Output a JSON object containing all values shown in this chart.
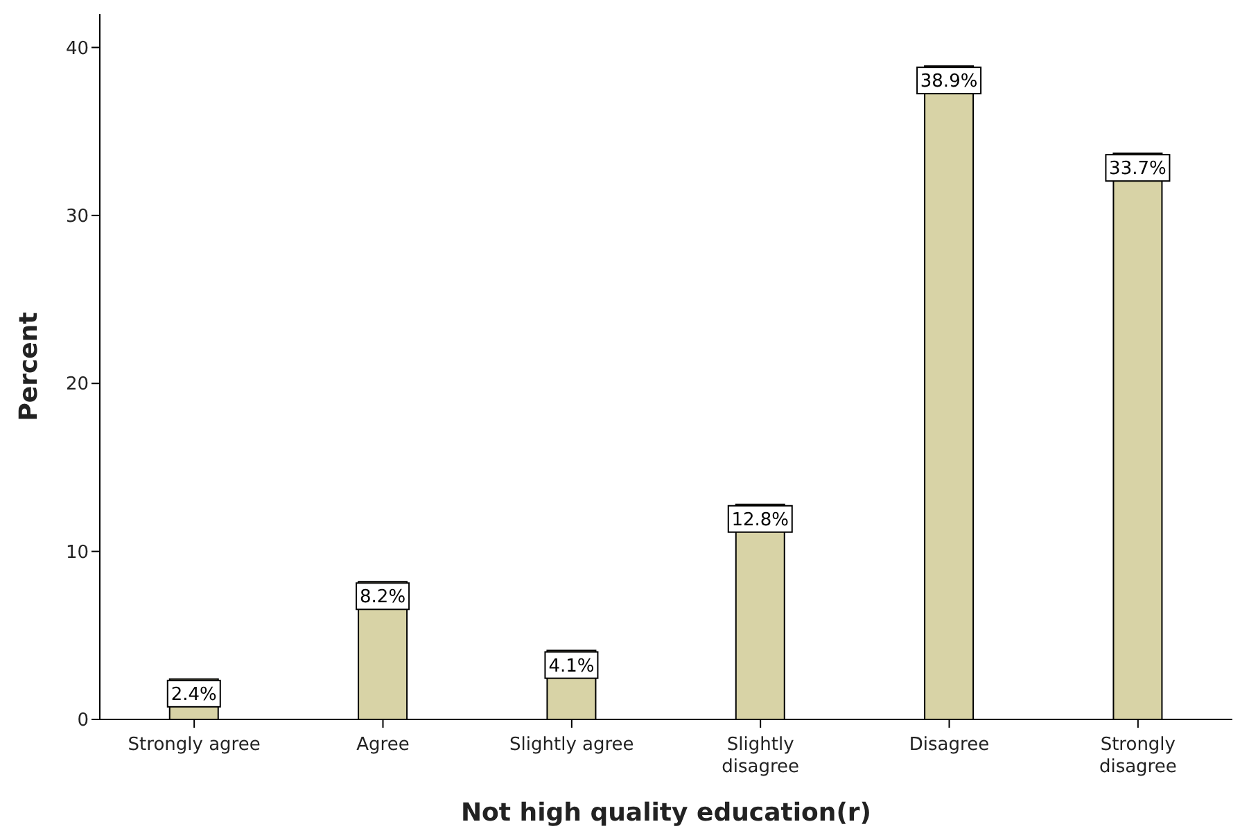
{
  "chart_data": {
    "type": "bar",
    "xlabel": "Not high quality education(r)",
    "ylabel": "Percent",
    "categories": [
      "Strongly agree",
      "Agree",
      "Slightly agree",
      "Slightly disagree",
      "Disagree",
      "Strongly disagree"
    ],
    "values": [
      2.4,
      8.2,
      4.1,
      12.8,
      38.9,
      33.7
    ],
    "value_labels": [
      "2.4%",
      "8.2%",
      "4.1%",
      "12.8%",
      "38.9%",
      "33.7%"
    ],
    "color": "#d8d3a6",
    "ylim": [
      0,
      42
    ],
    "yticks": [
      0,
      10,
      20,
      30,
      40
    ],
    "grid": false,
    "legend": false
  }
}
